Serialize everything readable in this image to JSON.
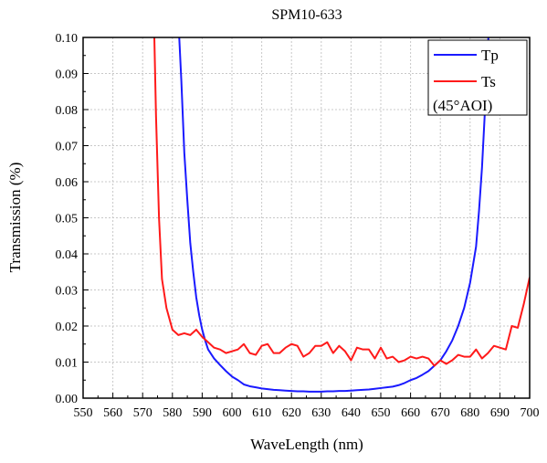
{
  "chart_data": {
    "type": "line",
    "title": "SPM10-633",
    "xlabel": "WaveLength (nm)",
    "ylabel": "Transmission (%)",
    "xlim": [
      550,
      700
    ],
    "ylim": [
      0,
      0.1
    ],
    "grid": true,
    "legend_position": "top-right",
    "legend_note": "(45°AOI)",
    "x_ticks": [
      "550",
      "560",
      "570",
      "580",
      "590",
      "600",
      "610",
      "620",
      "630",
      "640",
      "650",
      "660",
      "670",
      "680",
      "690",
      "700"
    ],
    "y_ticks": [
      "0.00",
      "0.01",
      "0.02",
      "0.03",
      "0.04",
      "0.05",
      "0.06",
      "0.07",
      "0.08",
      "0.09",
      "0.10"
    ],
    "series": [
      {
        "name": "Tp",
        "color": "#1a1aff",
        "points": [
          [
            582,
            0.105
          ],
          [
            583,
            0.088
          ],
          [
            584,
            0.068
          ],
          [
            585,
            0.055
          ],
          [
            586,
            0.043
          ],
          [
            587,
            0.035
          ],
          [
            588,
            0.028
          ],
          [
            589,
            0.023
          ],
          [
            590,
            0.019
          ],
          [
            591,
            0.016
          ],
          [
            592,
            0.0135
          ],
          [
            594,
            0.011
          ],
          [
            596,
            0.0092
          ],
          [
            598,
            0.0075
          ],
          [
            600,
            0.006
          ],
          [
            602,
            0.005
          ],
          [
            604,
            0.0038
          ],
          [
            606,
            0.0033
          ],
          [
            608,
            0.003
          ],
          [
            610,
            0.0027
          ],
          [
            612,
            0.0025
          ],
          [
            614,
            0.0023
          ],
          [
            616,
            0.0022
          ],
          [
            618,
            0.0021
          ],
          [
            620,
            0.002
          ],
          [
            622,
            0.0019
          ],
          [
            624,
            0.0019
          ],
          [
            626,
            0.0018
          ],
          [
            628,
            0.0018
          ],
          [
            630,
            0.0018
          ],
          [
            632,
            0.0019
          ],
          [
            634,
            0.0019
          ],
          [
            636,
            0.002
          ],
          [
            638,
            0.002
          ],
          [
            640,
            0.0021
          ],
          [
            642,
            0.0022
          ],
          [
            644,
            0.0023
          ],
          [
            646,
            0.0024
          ],
          [
            648,
            0.0026
          ],
          [
            650,
            0.0028
          ],
          [
            652,
            0.003
          ],
          [
            654,
            0.0032
          ],
          [
            656,
            0.0036
          ],
          [
            658,
            0.0042
          ],
          [
            660,
            0.005
          ],
          [
            662,
            0.0056
          ],
          [
            664,
            0.0065
          ],
          [
            666,
            0.0075
          ],
          [
            668,
            0.009
          ],
          [
            670,
            0.0105
          ],
          [
            672,
            0.013
          ],
          [
            674,
            0.016
          ],
          [
            676,
            0.02
          ],
          [
            678,
            0.025
          ],
          [
            680,
            0.032
          ],
          [
            682,
            0.042
          ],
          [
            683,
            0.052
          ],
          [
            684,
            0.064
          ],
          [
            685,
            0.08
          ],
          [
            686,
            0.098
          ],
          [
            686.5,
            0.105
          ]
        ]
      },
      {
        "name": "Ts",
        "color": "#ff1a1a",
        "points": [
          [
            573.8,
            0.105
          ],
          [
            574.5,
            0.078
          ],
          [
            575.5,
            0.05
          ],
          [
            576.5,
            0.033
          ],
          [
            578,
            0.025
          ],
          [
            580,
            0.019
          ],
          [
            582,
            0.0175
          ],
          [
            584,
            0.018
          ],
          [
            586,
            0.0175
          ],
          [
            588,
            0.019
          ],
          [
            590,
            0.017
          ],
          [
            592,
            0.0155
          ],
          [
            594,
            0.014
          ],
          [
            596,
            0.0135
          ],
          [
            598,
            0.0125
          ],
          [
            600,
            0.013
          ],
          [
            602,
            0.0135
          ],
          [
            604,
            0.015
          ],
          [
            606,
            0.0125
          ],
          [
            608,
            0.012
          ],
          [
            610,
            0.0145
          ],
          [
            612,
            0.015
          ],
          [
            614,
            0.0125
          ],
          [
            616,
            0.0125
          ],
          [
            618,
            0.014
          ],
          [
            620,
            0.015
          ],
          [
            622,
            0.0145
          ],
          [
            624,
            0.0115
          ],
          [
            626,
            0.0125
          ],
          [
            628,
            0.0145
          ],
          [
            630,
            0.0145
          ],
          [
            632,
            0.0155
          ],
          [
            634,
            0.0125
          ],
          [
            636,
            0.0145
          ],
          [
            638,
            0.013
          ],
          [
            640,
            0.0105
          ],
          [
            642,
            0.014
          ],
          [
            644,
            0.0135
          ],
          [
            646,
            0.0135
          ],
          [
            648,
            0.011
          ],
          [
            650,
            0.014
          ],
          [
            652,
            0.011
          ],
          [
            654,
            0.0115
          ],
          [
            656,
            0.01
          ],
          [
            658,
            0.0105
          ],
          [
            660,
            0.0115
          ],
          [
            662,
            0.011
          ],
          [
            664,
            0.0115
          ],
          [
            666,
            0.011
          ],
          [
            668,
            0.009
          ],
          [
            670,
            0.0105
          ],
          [
            672,
            0.0095
          ],
          [
            674,
            0.0105
          ],
          [
            676,
            0.012
          ],
          [
            678,
            0.0115
          ],
          [
            680,
            0.0115
          ],
          [
            682,
            0.0135
          ],
          [
            684,
            0.011
          ],
          [
            686,
            0.0125
          ],
          [
            688,
            0.0145
          ],
          [
            690,
            0.014
          ],
          [
            692,
            0.0135
          ],
          [
            694,
            0.02
          ],
          [
            696,
            0.0195
          ],
          [
            698,
            0.026
          ],
          [
            700,
            0.0335
          ]
        ]
      }
    ]
  }
}
